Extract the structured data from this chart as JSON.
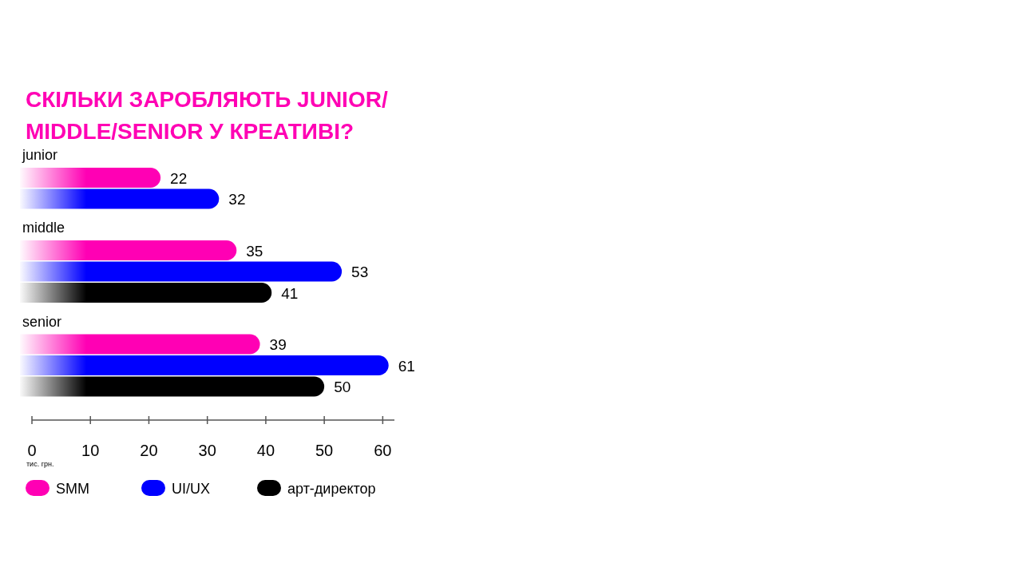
{
  "chart_data": {
    "type": "bar",
    "orientation": "horizontal",
    "title": "СКІЛЬКИ ЗАРОБЛЯЮТЬ JUNIOR/\nMIDDLE/SENIOR У КРЕАТИВІ?",
    "xlabel": "тис. грн.",
    "categories": [
      "junior",
      "middle",
      "senior"
    ],
    "series": [
      {
        "name": "SMM",
        "color": "#ff00b4",
        "values": [
          22,
          35,
          39
        ]
      },
      {
        "name": "UI/UX",
        "color": "#0000ff",
        "values": [
          32,
          53,
          61
        ]
      },
      {
        "name": "арт-директор",
        "color": "#000000",
        "values": [
          null,
          41,
          50
        ]
      }
    ],
    "xlim": [
      0,
      62
    ],
    "xticks": [
      0,
      10,
      20,
      30,
      40,
      50,
      60
    ],
    "data_labels": true,
    "legend": "bottom"
  }
}
